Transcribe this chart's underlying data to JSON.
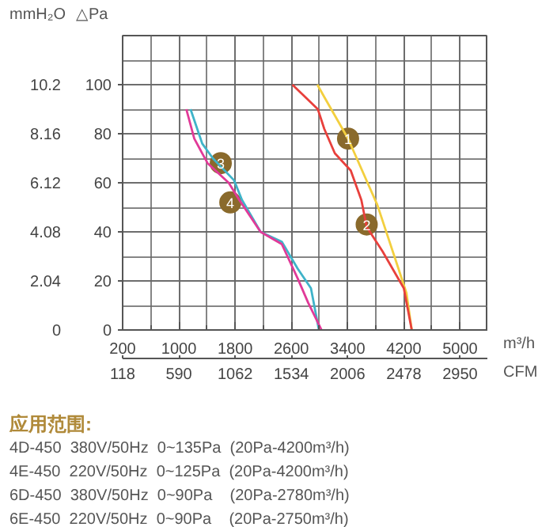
{
  "chart_data": {
    "type": "line",
    "xlabel": "m³/h",
    "x2label": "CFM",
    "ylabel": "△Pa",
    "y2label": "mmH₂O",
    "xlim": [
      200,
      5400
    ],
    "xticks": [
      200,
      1000,
      1800,
      2600,
      3400,
      4200,
      5000
    ],
    "x2lim": [
      118,
      3186
    ],
    "x2ticks": [
      118,
      590,
      1062,
      1534,
      2006,
      2478,
      2950
    ],
    "ylim": [
      0,
      120
    ],
    "yticks": [
      0,
      20,
      40,
      60,
      80,
      100
    ],
    "y2lim": [
      0,
      12.24
    ],
    "y2ticks": [
      0,
      2.04,
      4.08,
      6.12,
      8.16,
      10.2
    ],
    "grid": true,
    "line_style": "solid",
    "series": [
      {
        "color": "#f3cf3f",
        "x": [
          2970,
          3068,
          3407,
          3823,
          4124,
          4238,
          4313
        ],
        "values": [
          100,
          95,
          78,
          51,
          25,
          15,
          0
        ]
      },
      {
        "color": "#e8403c",
        "x": [
          2615,
          2977,
          3068,
          3219,
          3445,
          3596,
          3672,
          3898,
          4200,
          4313
        ],
        "values": [
          100,
          90,
          82,
          72,
          65,
          53,
          42,
          32,
          17,
          0
        ]
      },
      {
        "color": "#3fb3c9",
        "x": [
          1166,
          1332,
          1483,
          1785,
          1898,
          2162,
          2464,
          2690,
          2879,
          2992
        ],
        "values": [
          90,
          76,
          70,
          61,
          53,
          40,
          36,
          25,
          17,
          0
        ]
      },
      {
        "color": "#e13a98",
        "x": [
          1106,
          1219,
          1408,
          1709,
          1860,
          2162,
          2464,
          2690,
          2841,
          3030
        ],
        "values": [
          90,
          78,
          68,
          60,
          53,
          40,
          35,
          21,
          11,
          0
        ]
      }
    ],
    "annotations": [
      {
        "text": "1",
        "x": 3407,
        "y": 78
      },
      {
        "text": "2",
        "x": 3672,
        "y": 43
      },
      {
        "text": "3",
        "x": 1596,
        "y": 68
      },
      {
        "text": "4",
        "x": 1732,
        "y": 52
      },
      "应用范围:",
      "4D-450  380V/50Hz  0~135Pa   (20Pa-4200m³/h)",
      "4E-450  220V/50Hz  0~125Pa   (20Pa-4200m³/h)",
      "6D-450  380V/50Hz  0~90Pa     (20Pa-2780m³/h)",
      "6E-450  220V/50Hz  0~90Pa     (20Pa-2750m³/h)"
    ]
  }
}
